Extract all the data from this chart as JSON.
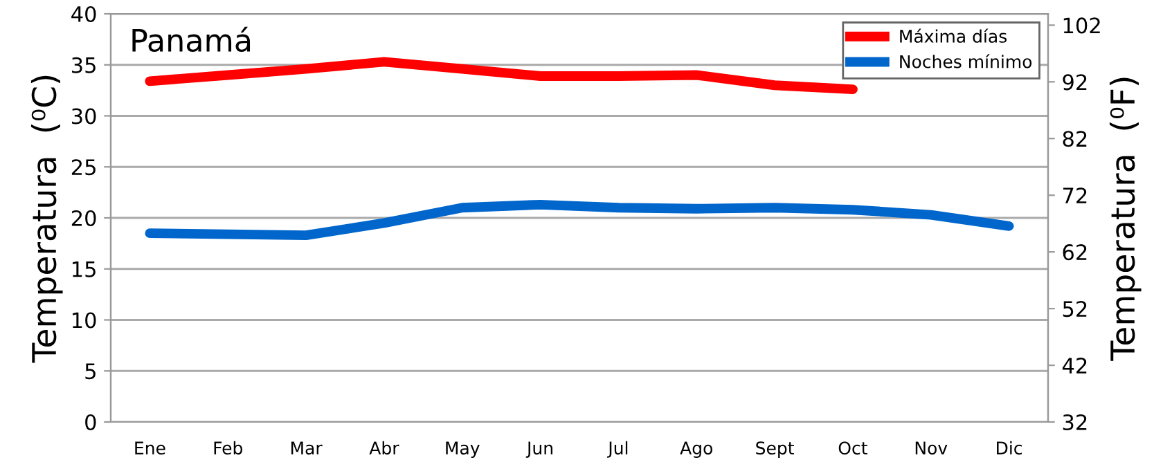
{
  "chart_data": {
    "type": "line",
    "title": "Panamá",
    "categories": [
      "Ene",
      "Feb",
      "Mar",
      "Abr",
      "May",
      "Jun",
      "Jul",
      "Ago",
      "Sept",
      "Oct",
      "Nov",
      "Dic"
    ],
    "series": [
      {
        "name": "Máxima días",
        "color": "#ff0000",
        "values": [
          33.4,
          34.0,
          34.6,
          35.3,
          34.6,
          33.9,
          33.9,
          34.0,
          33.0,
          32.6,
          null,
          null
        ]
      },
      {
        "name": "Noches mínimo",
        "color": "#0066cc",
        "values": [
          18.5,
          18.4,
          18.3,
          19.5,
          21.0,
          21.3,
          21.0,
          20.9,
          21.0,
          20.8,
          20.3,
          19.2
        ]
      }
    ],
    "ylabel": "Temperatura  (⁰C)",
    "y2label": "Temperatura  (⁰F)",
    "ylim": [
      0,
      40
    ],
    "yticks": [
      0,
      5,
      10,
      15,
      20,
      25,
      30,
      35,
      40
    ],
    "y2lim": [
      32,
      104
    ],
    "y2ticks": [
      32,
      42,
      52,
      62,
      72,
      82,
      92,
      102
    ],
    "grid": "y",
    "legend": "top right"
  }
}
